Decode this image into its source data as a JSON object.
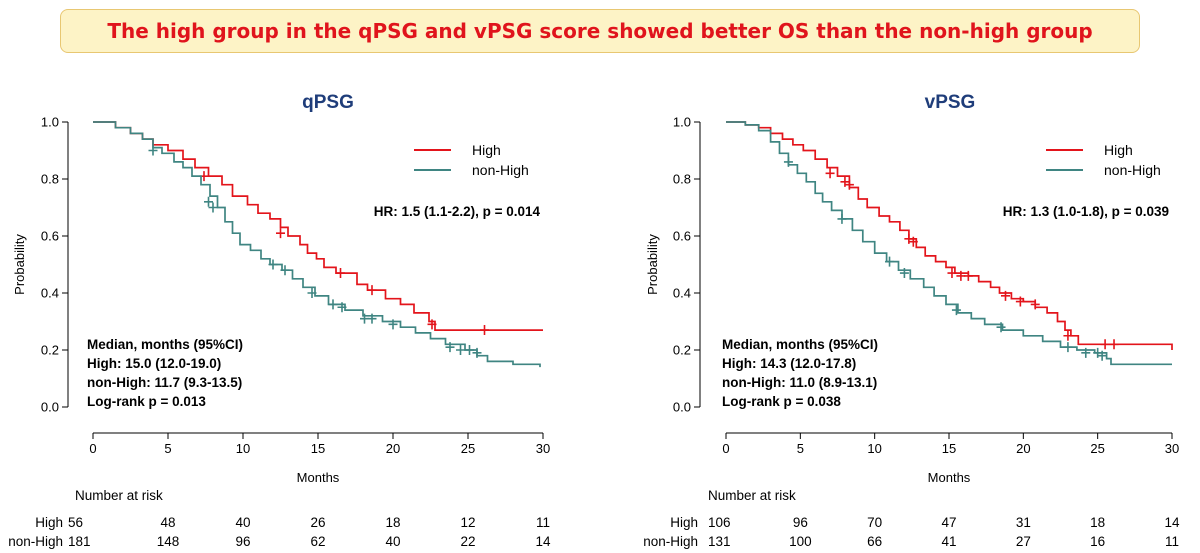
{
  "banner": {
    "text": "The high group in the qPSG and vPSG score showed better OS than the non-high group"
  },
  "colors": {
    "high": "#e3141b",
    "non_high": "#3f8582",
    "title": "#1f3d7a",
    "banner_bg": "#fdf3c6",
    "banner_border": "#e8c772",
    "banner_text": "#e0141c"
  },
  "chart_data": [
    {
      "type": "line",
      "title": "qPSG",
      "xlabel": "Months",
      "ylabel": "Probability",
      "xlim": [
        0,
        30
      ],
      "ylim": [
        0,
        1
      ],
      "x_ticks": [
        "0",
        "5",
        "10",
        "15",
        "20",
        "25",
        "30"
      ],
      "y_ticks": [
        "0.0",
        "0.2",
        "0.4",
        "0.6",
        "0.8",
        "1.0"
      ],
      "legend": {
        "position": "top-right",
        "entries": [
          "High",
          "non-High"
        ]
      },
      "hr_text": "HR: 1.5 (1.1-2.2), p = 0.014",
      "median_lines": [
        "Median, months (95%CI)",
        "High: 15.0 (12.0-19.0)",
        "non-High: 11.7 (9.3-13.5)",
        "Log-rank p = 0.013"
      ],
      "risk_table": {
        "title": "Number at risk",
        "rows": [
          {
            "label": "High",
            "values": [
              "56",
              "48",
              "40",
              "26",
              "18",
              "12",
              "11"
            ]
          },
          {
            "label": "non-High",
            "values": [
              "181",
              "148",
              "96",
              "62",
              "40",
              "22",
              "14"
            ]
          }
        ]
      },
      "series": [
        {
          "name": "High",
          "color": "#e3141b",
          "steps": [
            [
              0,
              1.0
            ],
            [
              1.5,
              0.98
            ],
            [
              2.5,
              0.96
            ],
            [
              3.3,
              0.94
            ],
            [
              4.0,
              0.92
            ],
            [
              5.0,
              0.9
            ],
            [
              6.0,
              0.87
            ],
            [
              6.8,
              0.84
            ],
            [
              7.7,
              0.81
            ],
            [
              8.6,
              0.78
            ],
            [
              9.3,
              0.74
            ],
            [
              10.3,
              0.71
            ],
            [
              11.0,
              0.68
            ],
            [
              11.8,
              0.66
            ],
            [
              12.5,
              0.63
            ],
            [
              13.0,
              0.6
            ],
            [
              13.8,
              0.57
            ],
            [
              14.3,
              0.54
            ],
            [
              14.9,
              0.52
            ],
            [
              15.4,
              0.49
            ],
            [
              16.2,
              0.47
            ],
            [
              17.6,
              0.43
            ],
            [
              18.3,
              0.41
            ],
            [
              19.5,
              0.38
            ],
            [
              20.5,
              0.36
            ],
            [
              21.4,
              0.33
            ],
            [
              22.4,
              0.3
            ],
            [
              22.8,
              0.27
            ],
            [
              30,
              0.27
            ]
          ],
          "censors": [
            [
              7.4,
              0.81
            ],
            [
              12.5,
              0.61
            ],
            [
              16.5,
              0.47
            ],
            [
              18.6,
              0.41
            ],
            [
              22.6,
              0.29
            ],
            [
              26.1,
              0.27
            ]
          ]
        },
        {
          "name": "non-High",
          "color": "#3f8582",
          "steps": [
            [
              0,
              1.0
            ],
            [
              1.5,
              0.98
            ],
            [
              2.5,
              0.96
            ],
            [
              3.3,
              0.94
            ],
            [
              4.0,
              0.91
            ],
            [
              4.6,
              0.89
            ],
            [
              5.4,
              0.86
            ],
            [
              6.0,
              0.84
            ],
            [
              6.6,
              0.81
            ],
            [
              7.2,
              0.78
            ],
            [
              7.8,
              0.74
            ],
            [
              8.3,
              0.7
            ],
            [
              8.8,
              0.65
            ],
            [
              9.3,
              0.61
            ],
            [
              9.8,
              0.57
            ],
            [
              10.5,
              0.55
            ],
            [
              11.2,
              0.52
            ],
            [
              11.8,
              0.5
            ],
            [
              12.6,
              0.48
            ],
            [
              13.3,
              0.45
            ],
            [
              14.0,
              0.42
            ],
            [
              14.8,
              0.39
            ],
            [
              15.7,
              0.36
            ],
            [
              16.8,
              0.34
            ],
            [
              18.0,
              0.32
            ],
            [
              19.3,
              0.3
            ],
            [
              20.5,
              0.28
            ],
            [
              21.5,
              0.26
            ],
            [
              22.5,
              0.24
            ],
            [
              23.5,
              0.22
            ],
            [
              24.8,
              0.2
            ],
            [
              25.6,
              0.18
            ],
            [
              26.3,
              0.16
            ],
            [
              28.0,
              0.15
            ],
            [
              29.8,
              0.14
            ]
          ],
          "censors": [
            [
              4.0,
              0.9
            ],
            [
              7.7,
              0.72
            ],
            [
              8.0,
              0.7
            ],
            [
              12.0,
              0.5
            ],
            [
              12.8,
              0.48
            ],
            [
              14.6,
              0.4
            ],
            [
              16.0,
              0.36
            ],
            [
              16.6,
              0.35
            ],
            [
              18.1,
              0.31
            ],
            [
              18.6,
              0.31
            ],
            [
              20.0,
              0.29
            ],
            [
              23.8,
              0.21
            ],
            [
              24.5,
              0.2
            ],
            [
              25.1,
              0.2
            ],
            [
              25.6,
              0.19
            ]
          ]
        }
      ]
    },
    {
      "type": "line",
      "title": "vPSG",
      "xlabel": "Months",
      "ylabel": "Probability",
      "xlim": [
        0,
        30
      ],
      "ylim": [
        0,
        1
      ],
      "x_ticks": [
        "0",
        "5",
        "10",
        "15",
        "20",
        "25",
        "30"
      ],
      "y_ticks": [
        "0.0",
        "0.2",
        "0.4",
        "0.6",
        "0.8",
        "1.0"
      ],
      "legend": {
        "position": "top-right",
        "entries": [
          "High",
          "non-High"
        ]
      },
      "hr_text": "HR: 1.3 (1.0-1.8), p = 0.039",
      "median_lines": [
        "Median, months (95%CI)",
        "High: 14.3 (12.0-17.8)",
        "non-High: 11.0 (8.9-13.1)",
        "Log-rank p = 0.038"
      ],
      "risk_table": {
        "title": "Number at risk",
        "rows": [
          {
            "label": "High",
            "values": [
              "106",
              "96",
              "70",
              "47",
              "31",
              "18",
              "14"
            ]
          },
          {
            "label": "non-High",
            "values": [
              "131",
              "100",
              "66",
              "41",
              "27",
              "16",
              "11"
            ]
          }
        ]
      },
      "series": [
        {
          "name": "High",
          "color": "#e3141b",
          "steps": [
            [
              0,
              1.0
            ],
            [
              1.3,
              0.99
            ],
            [
              2.2,
              0.98
            ],
            [
              3.0,
              0.96
            ],
            [
              3.8,
              0.94
            ],
            [
              4.5,
              0.92
            ],
            [
              5.2,
              0.9
            ],
            [
              6.0,
              0.87
            ],
            [
              6.8,
              0.84
            ],
            [
              7.5,
              0.81
            ],
            [
              8.3,
              0.77
            ],
            [
              8.9,
              0.73
            ],
            [
              9.5,
              0.7
            ],
            [
              10.3,
              0.67
            ],
            [
              11.0,
              0.65
            ],
            [
              11.7,
              0.62
            ],
            [
              12.3,
              0.59
            ],
            [
              12.8,
              0.56
            ],
            [
              13.4,
              0.53
            ],
            [
              14.1,
              0.51
            ],
            [
              14.8,
              0.49
            ],
            [
              15.4,
              0.47
            ],
            [
              16.3,
              0.46
            ],
            [
              17.0,
              0.44
            ],
            [
              17.8,
              0.42
            ],
            [
              18.4,
              0.4
            ],
            [
              19.2,
              0.38
            ],
            [
              20.0,
              0.37
            ],
            [
              20.8,
              0.35
            ],
            [
              21.6,
              0.33
            ],
            [
              22.3,
              0.3
            ],
            [
              22.8,
              0.27
            ],
            [
              23.2,
              0.25
            ],
            [
              23.7,
              0.22
            ],
            [
              29.5,
              0.22
            ],
            [
              30,
              0.2
            ]
          ],
          "censors": [
            [
              7.0,
              0.82
            ],
            [
              8.0,
              0.79
            ],
            [
              8.3,
              0.78
            ],
            [
              12.3,
              0.59
            ],
            [
              12.6,
              0.58
            ],
            [
              15.2,
              0.47
            ],
            [
              15.8,
              0.46
            ],
            [
              16.3,
              0.46
            ],
            [
              18.8,
              0.39
            ],
            [
              19.8,
              0.37
            ],
            [
              20.8,
              0.36
            ],
            [
              23.0,
              0.25
            ],
            [
              25.5,
              0.22
            ],
            [
              26.1,
              0.22
            ]
          ]
        },
        {
          "name": "non-High",
          "color": "#3f8582",
          "steps": [
            [
              0,
              1.0
            ],
            [
              1.3,
              0.99
            ],
            [
              2.2,
              0.97
            ],
            [
              3.0,
              0.93
            ],
            [
              3.6,
              0.89
            ],
            [
              4.2,
              0.85
            ],
            [
              4.8,
              0.82
            ],
            [
              5.4,
              0.79
            ],
            [
              6.0,
              0.75
            ],
            [
              6.5,
              0.72
            ],
            [
              7.1,
              0.69
            ],
            [
              7.8,
              0.66
            ],
            [
              8.5,
              0.62
            ],
            [
              9.2,
              0.58
            ],
            [
              10.0,
              0.54
            ],
            [
              10.8,
              0.51
            ],
            [
              11.6,
              0.48
            ],
            [
              12.4,
              0.45
            ],
            [
              13.3,
              0.42
            ],
            [
              14.0,
              0.39
            ],
            [
              14.8,
              0.36
            ],
            [
              15.6,
              0.33
            ],
            [
              16.5,
              0.31
            ],
            [
              17.4,
              0.29
            ],
            [
              18.6,
              0.27
            ],
            [
              20.0,
              0.25
            ],
            [
              21.3,
              0.23
            ],
            [
              22.5,
              0.21
            ],
            [
              23.6,
              0.2
            ],
            [
              24.8,
              0.19
            ],
            [
              25.6,
              0.17
            ],
            [
              25.9,
              0.15
            ],
            [
              30,
              0.15
            ]
          ],
          "censors": [
            [
              4.2,
              0.86
            ],
            [
              7.8,
              0.66
            ],
            [
              11.0,
              0.51
            ],
            [
              12.0,
              0.47
            ],
            [
              15.5,
              0.34
            ],
            [
              18.5,
              0.28
            ],
            [
              23.0,
              0.21
            ],
            [
              24.2,
              0.19
            ],
            [
              25.0,
              0.19
            ],
            [
              25.3,
              0.18
            ]
          ]
        }
      ]
    }
  ]
}
